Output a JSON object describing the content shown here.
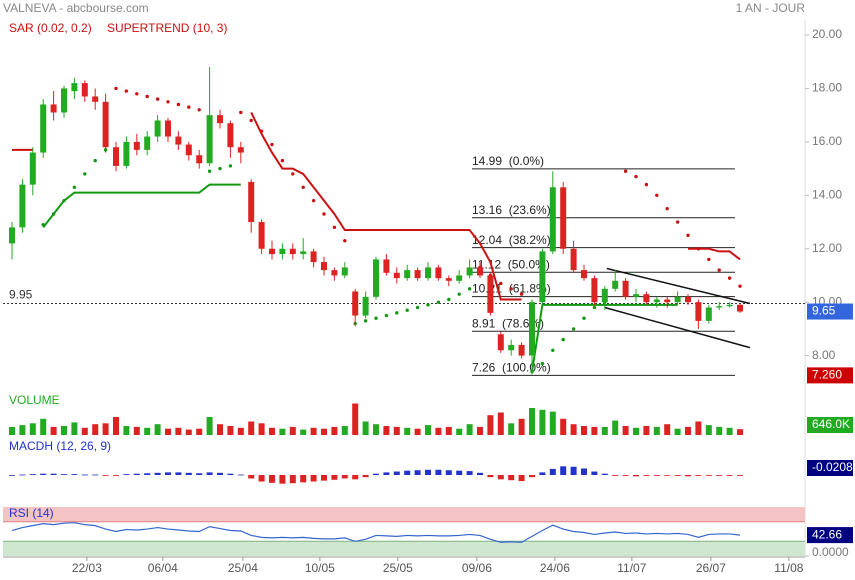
{
  "chart_data": {
    "type": "candlestick",
    "title": "VALNEVA - abcbourse.com",
    "period": "1 AN - JOUR",
    "indicator_labels": {
      "sar": "SAR (0.02, 0.2)",
      "supertrend": "SUPERTREND (10, 3)",
      "volume": "VOLUME",
      "macdh": "MACDH (12, 26, 9)",
      "rsi": "RSI (14)"
    },
    "up_color": "#22aa22",
    "down_color": "#dd2222",
    "x": [
      0,
      2,
      4,
      6,
      8,
      10,
      12,
      14,
      16,
      18,
      20,
      22,
      24,
      26,
      28,
      30,
      32,
      34,
      36,
      38,
      40,
      42,
      44,
      46,
      48,
      50,
      52,
      54,
      56,
      58,
      60,
      62,
      64,
      66,
      68,
      70,
      72,
      74,
      76,
      78,
      80,
      82,
      84,
      86,
      88,
      90,
      92,
      94,
      96,
      98,
      100,
      102,
      104,
      106,
      108,
      110,
      112,
      114,
      116,
      118,
      120,
      122,
      124,
      126,
      128,
      130,
      132,
      134,
      136,
      138,
      140
    ],
    "candles": [
      [
        12.2,
        13.0,
        11.6,
        12.8
      ],
      [
        12.8,
        14.6,
        12.6,
        14.4
      ],
      [
        14.4,
        15.8,
        14.0,
        15.6
      ],
      [
        15.6,
        17.6,
        15.4,
        17.4
      ],
      [
        17.4,
        17.9,
        16.8,
        17.1
      ],
      [
        17.1,
        18.1,
        16.9,
        18.0
      ],
      [
        17.9,
        18.4,
        17.6,
        18.2
      ],
      [
        18.2,
        18.3,
        17.5,
        17.7
      ],
      [
        17.7,
        18.0,
        17.2,
        17.5
      ],
      [
        17.5,
        17.8,
        15.6,
        15.8
      ],
      [
        15.8,
        16.0,
        14.9,
        15.1
      ],
      [
        15.1,
        16.2,
        15.0,
        16.0
      ],
      [
        16.0,
        16.3,
        15.5,
        15.7
      ],
      [
        15.7,
        16.4,
        15.5,
        16.2
      ],
      [
        16.2,
        17.0,
        16.0,
        16.8
      ],
      [
        16.8,
        16.9,
        16.0,
        16.2
      ],
      [
        16.2,
        16.4,
        15.7,
        15.9
      ],
      [
        15.9,
        16.0,
        15.3,
        15.5
      ],
      [
        15.5,
        15.7,
        15.0,
        15.2
      ],
      [
        15.2,
        18.8,
        15.1,
        17.0
      ],
      [
        17.0,
        17.2,
        16.5,
        16.7
      ],
      [
        16.7,
        16.8,
        15.4,
        15.8
      ],
      [
        15.8,
        16.0,
        15.2,
        15.6
      ],
      [
        14.5,
        14.6,
        12.6,
        13.0
      ],
      [
        13.0,
        13.1,
        11.8,
        12.0
      ],
      [
        12.0,
        12.3,
        11.6,
        11.8
      ],
      [
        11.8,
        12.2,
        11.6,
        12.0
      ],
      [
        12.0,
        12.2,
        11.6,
        11.8
      ],
      [
        11.8,
        12.4,
        11.6,
        11.9
      ],
      [
        11.9,
        12.0,
        11.3,
        11.5
      ],
      [
        11.5,
        11.7,
        11.0,
        11.2
      ],
      [
        11.2,
        11.3,
        10.8,
        11.0
      ],
      [
        11.0,
        11.5,
        10.9,
        11.3
      ],
      [
        10.4,
        10.5,
        9.1,
        9.5
      ],
      [
        9.5,
        10.4,
        9.4,
        10.2
      ],
      [
        10.2,
        11.7,
        10.1,
        11.6
      ],
      [
        11.6,
        11.8,
        11.0,
        11.1
      ],
      [
        11.1,
        11.3,
        10.7,
        10.9
      ],
      [
        10.9,
        11.4,
        10.8,
        11.2
      ],
      [
        11.2,
        11.3,
        10.8,
        10.9
      ],
      [
        10.9,
        11.5,
        10.8,
        11.3
      ],
      [
        11.3,
        11.4,
        10.8,
        10.9
      ],
      [
        10.9,
        11.0,
        10.6,
        10.8
      ],
      [
        10.8,
        11.2,
        10.7,
        11.0
      ],
      [
        11.0,
        11.6,
        10.9,
        11.3
      ],
      [
        11.3,
        11.5,
        10.9,
        11.0
      ],
      [
        11.0,
        11.1,
        9.5,
        9.6
      ],
      [
        8.8,
        8.9,
        8.1,
        8.2
      ],
      [
        8.2,
        8.6,
        8.0,
        8.4
      ],
      [
        8.4,
        8.5,
        7.9,
        8.0
      ],
      [
        8.0,
        10.1,
        7.3,
        10.0
      ],
      [
        10.0,
        12.0,
        9.9,
        11.9
      ],
      [
        11.9,
        14.9,
        11.8,
        14.3
      ],
      [
        14.3,
        14.5,
        11.8,
        12.0
      ],
      [
        12.0,
        12.3,
        11.1,
        11.2
      ],
      [
        11.2,
        11.4,
        10.8,
        10.9
      ],
      [
        10.9,
        11.0,
        9.9,
        10.0
      ],
      [
        10.0,
        10.6,
        9.7,
        10.5
      ],
      [
        10.5,
        11.2,
        10.4,
        10.8
      ],
      [
        10.8,
        10.9,
        10.1,
        10.2
      ],
      [
        10.2,
        10.5,
        10.0,
        10.3
      ],
      [
        10.3,
        10.4,
        9.9,
        10.0
      ],
      [
        10.0,
        10.2,
        9.8,
        10.1
      ],
      [
        10.1,
        10.2,
        9.8,
        10.0
      ],
      [
        10.0,
        10.4,
        9.9,
        10.2
      ],
      [
        10.2,
        10.3,
        9.9,
        10.0
      ],
      [
        10.0,
        10.1,
        9.0,
        9.3
      ],
      [
        9.3,
        9.9,
        9.2,
        9.8
      ],
      [
        9.8,
        10.0,
        9.7,
        9.85
      ],
      [
        9.85,
        10.0,
        9.8,
        9.9
      ],
      [
        9.9,
        9.95,
        9.6,
        9.65
      ]
    ],
    "sar": [
      null,
      null,
      null,
      12.9,
      13.3,
      13.8,
      14.3,
      14.8,
      15.3,
      15.7,
      18.0,
      17.9,
      17.8,
      17.7,
      17.6,
      17.5,
      17.4,
      17.3,
      17.2,
      14.9,
      15.0,
      15.1,
      17.1,
      16.8,
      16.4,
      15.9,
      15.3,
      14.8,
      14.3,
      13.8,
      13.3,
      12.8,
      12.3,
      9.2,
      9.3,
      9.4,
      9.5,
      9.6,
      9.7,
      9.8,
      9.9,
      10.0,
      10.1,
      10.3,
      10.5,
      11.3,
      11.0,
      10.7,
      10.5,
      10.3,
      7.4,
      7.7,
      8.2,
      8.6,
      9.0,
      9.4,
      9.8,
      10.0,
      null,
      14.9,
      14.7,
      14.4,
      14.0,
      13.5,
      13.0,
      12.5,
      12.0,
      11.6,
      11.2,
      10.9,
      10.6
    ],
    "supertrend": [
      15.7,
      15.7,
      15.7,
      12.8,
      13.3,
      13.8,
      14.1,
      14.1,
      14.1,
      14.1,
      14.1,
      14.1,
      14.1,
      14.1,
      14.1,
      14.1,
      14.1,
      14.1,
      14.1,
      14.4,
      14.4,
      14.4,
      14.4,
      17.1,
      16.3,
      15.6,
      15.0,
      15.0,
      14.8,
      14.3,
      13.8,
      13.3,
      12.7,
      12.7,
      12.7,
      12.7,
      12.7,
      12.7,
      12.7,
      12.7,
      12.7,
      12.7,
      12.7,
      12.7,
      12.7,
      12.2,
      11.5,
      10.1,
      10.1,
      10.1,
      7.4,
      9.9,
      9.9,
      9.9,
      9.9,
      9.9,
      9.9,
      9.9,
      9.9,
      9.9,
      9.9,
      9.9,
      9.9,
      9.9,
      9.9,
      12.0,
      12.0,
      12.0,
      11.9,
      11.9,
      11.6
    ],
    "ylim": [
      6.9,
      20
    ],
    "yticks": [
      {
        "value": 8,
        "label": "8.00"
      },
      {
        "value": 10,
        "label": "10.00"
      },
      {
        "value": 12,
        "label": "12.00"
      },
      {
        "value": 14,
        "label": "14.00"
      },
      {
        "value": 16,
        "label": "16.00"
      },
      {
        "value": 18,
        "label": "18.00"
      },
      {
        "value": 20,
        "label": "20.00"
      }
    ],
    "xlim": [
      0,
      150
    ],
    "xticks": [
      {
        "value": 14.4,
        "label": "22/03"
      },
      {
        "value": 29,
        "label": "06/04"
      },
      {
        "value": 44.4,
        "label": "25/04"
      },
      {
        "value": 59.2,
        "label": "10/05"
      },
      {
        "value": 74.2,
        "label": "25/05"
      },
      {
        "value": 89.4,
        "label": "09/06"
      },
      {
        "value": 104.4,
        "label": "24/06"
      },
      {
        "value": 119.2,
        "label": "11/07"
      },
      {
        "value": 134.4,
        "label": "26/07"
      },
      {
        "value": 149.4,
        "label": "11/08"
      }
    ],
    "reference": 9.95,
    "fibonacci": [
      {
        "value": 14.99,
        "label": "14.99  (0.0%)"
      },
      {
        "value": 13.16,
        "label": "13.16  (23.6%)"
      },
      {
        "value": 12.04,
        "label": "12.04  (38.2%)"
      },
      {
        "value": 11.12,
        "label": "11.12  (50.0%)"
      },
      {
        "value": 10.21,
        "label": "10.21  (61.8%)"
      },
      {
        "value": 8.91,
        "label": "8.91  (78.6%)"
      },
      {
        "value": 7.26,
        "label": "7.26  (100.0%)"
      }
    ],
    "fib_low_marker": {
      "value": 7.26,
      "label": "7.260"
    },
    "channel": [
      [
        [
          114.4,
          11.26
        ],
        [
          141.9,
          9.95
        ]
      ],
      [
        [
          114.0,
          9.8
        ],
        [
          141.9,
          8.3
        ]
      ]
    ],
    "volume": {
      "values": [
        900000,
        1100000,
        1300000,
        1800000,
        900000,
        1000000,
        1400000,
        800000,
        1200000,
        1300000,
        2000000,
        1000000,
        900000,
        800000,
        1200000,
        700000,
        800000,
        600000,
        700000,
        2000000,
        1200000,
        1000000,
        800000,
        1500000,
        1300000,
        800000,
        700000,
        900000,
        600000,
        800000,
        700000,
        900000,
        1000000,
        3500000,
        1500000,
        1200000,
        1000000,
        900000,
        800000,
        700000,
        1100000,
        800000,
        900000,
        700000,
        1200000,
        900000,
        2200000,
        2500000,
        1300000,
        1800000,
        3000000,
        2800000,
        2600000,
        1800000,
        1200000,
        1000000,
        900000,
        900000,
        1600000,
        1000000,
        800000,
        1000000,
        900000,
        1200000,
        700000,
        900000,
        1500000,
        1100000,
        900000,
        800000,
        646000
      ],
      "last_label": "646.0K",
      "ylim": [
        0,
        5000000
      ]
    },
    "macdh": {
      "values": [
        0,
        0.01,
        0.02,
        0.03,
        0.03,
        0.02,
        0.02,
        0.01,
        0.01,
        -0.01,
        -0.02,
        0.02,
        0.03,
        0.04,
        0.05,
        0.06,
        0.06,
        0.05,
        0.04,
        0.06,
        0.05,
        0.03,
        0.01,
        -0.08,
        -0.15,
        -0.18,
        -0.2,
        -0.19,
        -0.17,
        -0.15,
        -0.13,
        -0.11,
        -0.08,
        -0.1,
        -0.05,
        0.03,
        0.06,
        0.08,
        0.1,
        0.11,
        0.12,
        0.12,
        0.11,
        0.1,
        0.09,
        0.05,
        -0.05,
        -0.1,
        -0.12,
        -0.14,
        -0.05,
        0.06,
        0.14,
        0.2,
        0.19,
        0.15,
        0.08,
        0.03,
        -0.02,
        -0.02,
        -0.03,
        -0.02,
        -0.02,
        -0.01,
        -0.02,
        -0.03,
        -0.02,
        -0.02,
        -0.02,
        -0.02,
        -0.0208
      ],
      "ylim": [
        -0.3,
        0.3
      ],
      "pos_color": "#2233cc",
      "neg_color": "#dd2222"
    },
    "rsi": {
      "values": [
        52,
        58,
        62,
        66,
        64,
        67,
        68,
        64,
        62,
        55,
        50,
        54,
        53,
        55,
        58,
        55,
        53,
        51,
        50,
        60,
        56,
        52,
        51,
        42,
        38,
        37,
        38,
        37,
        38,
        36,
        35,
        35,
        37,
        30,
        34,
        42,
        41,
        40,
        42,
        41,
        42,
        41,
        41,
        42,
        44,
        42,
        34,
        28,
        29,
        28,
        40,
        52,
        63,
        55,
        50,
        48,
        44,
        47,
        49,
        46,
        47,
        45,
        46,
        45,
        46,
        44,
        38,
        44,
        45,
        45,
        42.66
      ],
      "ylim": [
        0,
        100
      ],
      "overbought": 70,
      "oversold": 30,
      "yticks": [
        {
          "value": 0,
          "label": "0.0000"
        }
      ],
      "color": "#3366cc"
    }
  }
}
